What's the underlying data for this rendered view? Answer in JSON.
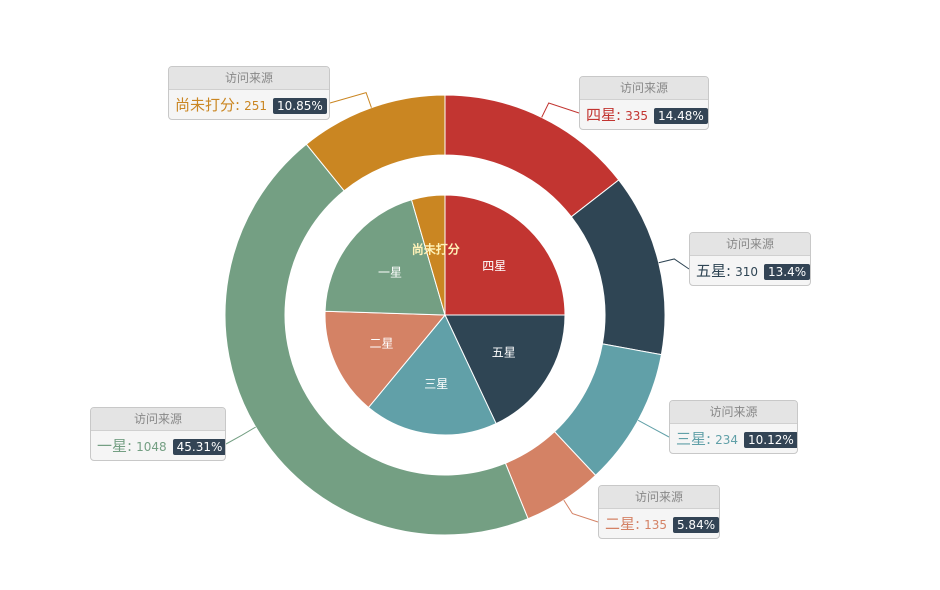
{
  "chart_data": {
    "type": "pie",
    "subtype": "nested donut",
    "tooltip_header": "访问来源",
    "colors": {
      "四星": "#c23531",
      "五星": "#2f4554",
      "三星": "#61a0a8",
      "二星": "#d48265",
      "一星": "#749f83",
      "尚未打分": "#ca8622"
    },
    "inner": {
      "slices": [
        {
          "name": "四星"
        },
        {
          "name": "五星"
        },
        {
          "name": "三星"
        },
        {
          "name": "二星"
        },
        {
          "name": "一星"
        },
        {
          "name": "尚未打分"
        }
      ],
      "fractions": [
        0.25,
        0.18,
        0.18,
        0.145,
        0.2,
        0.045
      ]
    },
    "outer": {
      "slices": [
        {
          "name": "四星",
          "value": 335,
          "percent": "14.48%"
        },
        {
          "name": "五星",
          "value": 310,
          "percent": "13.4%"
        },
        {
          "name": "三星",
          "value": 234,
          "percent": "10.12%"
        },
        {
          "name": "二星",
          "value": 135,
          "percent": "5.84%"
        },
        {
          "name": "一星",
          "value": 1048,
          "percent": "45.31%"
        },
        {
          "name": "尚未打分",
          "value": 251,
          "percent": "10.85%"
        }
      ]
    }
  }
}
